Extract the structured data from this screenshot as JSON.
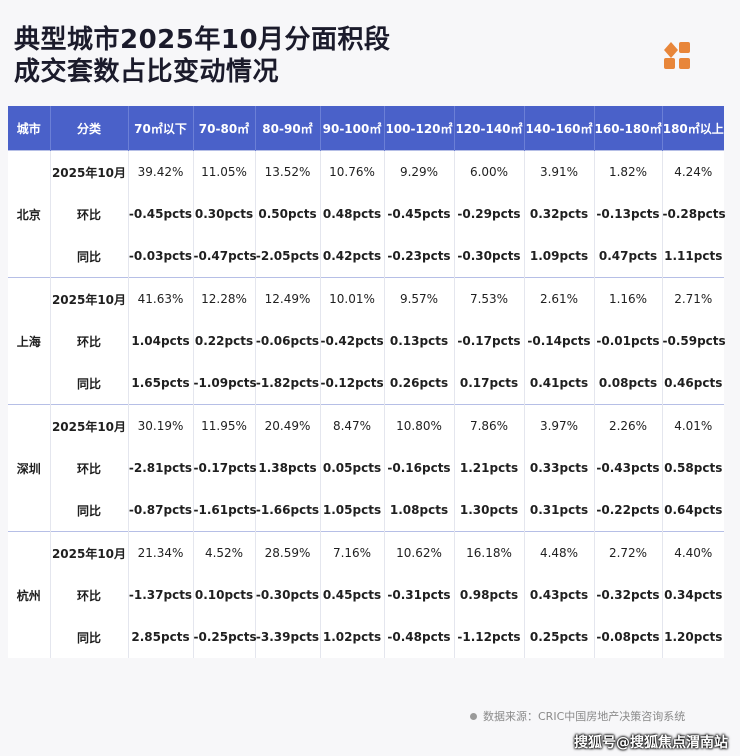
{
  "title_lines": [
    "典型城市2025年10月分面积段",
    "成交套数占比变动情况"
  ],
  "logo": {
    "icon": "grid-squares-icon",
    "color": "#e8863a"
  },
  "headers": [
    "城市",
    "分类",
    "70㎡以下",
    "70-80㎡",
    "80-90㎡",
    "90-100㎡",
    "100-120㎡",
    "120-140㎡",
    "140-160㎡",
    "160-180㎡",
    "180㎡以上"
  ],
  "colors": {
    "header_bg": "#4a61c9",
    "positive": "#d7192b",
    "negative": "#1a9b48"
  },
  "cities": [
    {
      "name": "北京",
      "rows": [
        {
          "type": "2025年10月",
          "values": [
            "39.42%",
            "11.05%",
            "13.52%",
            "10.76%",
            "9.29%",
            "6.00%",
            "3.91%",
            "1.82%",
            "4.24%"
          ]
        },
        {
          "type": "环比",
          "values": [
            "-0.45pcts",
            "0.30pcts",
            "0.50pcts",
            "0.48pcts",
            "-0.45pcts",
            "-0.29pcts",
            "0.32pcts",
            "-0.13pcts",
            "-0.28pcts"
          ]
        },
        {
          "type": "同比",
          "values": [
            "-0.03pcts",
            "-0.47pcts",
            "-2.05pcts",
            "0.42pcts",
            "-0.23pcts",
            "-0.30pcts",
            "1.09pcts",
            "0.47pcts",
            "1.11pcts"
          ]
        }
      ]
    },
    {
      "name": "上海",
      "rows": [
        {
          "type": "2025年10月",
          "values": [
            "41.63%",
            "12.28%",
            "12.49%",
            "10.01%",
            "9.57%",
            "7.53%",
            "2.61%",
            "1.16%",
            "2.71%"
          ]
        },
        {
          "type": "环比",
          "values": [
            "1.04pcts",
            "0.22pcts",
            "-0.06pcts",
            "-0.42pcts",
            "0.13pcts",
            "-0.17pcts",
            "-0.14pcts",
            "-0.01pcts",
            "-0.59pcts"
          ]
        },
        {
          "type": "同比",
          "values": [
            "1.65pcts",
            "-1.09pcts",
            "-1.82pcts",
            "-0.12pcts",
            "0.26pcts",
            "0.17pcts",
            "0.41pcts",
            "0.08pcts",
            "0.46pcts"
          ]
        }
      ]
    },
    {
      "name": "深圳",
      "rows": [
        {
          "type": "2025年10月",
          "values": [
            "30.19%",
            "11.95%",
            "20.49%",
            "8.47%",
            "10.80%",
            "7.86%",
            "3.97%",
            "2.26%",
            "4.01%"
          ]
        },
        {
          "type": "环比",
          "values": [
            "-2.81pcts",
            "-0.17pcts",
            "1.38pcts",
            "0.05pcts",
            "-0.16pcts",
            "1.21pcts",
            "0.33pcts",
            "-0.43pcts",
            "0.58pcts"
          ]
        },
        {
          "type": "同比",
          "values": [
            "-0.87pcts",
            "-1.61pcts",
            "-1.66pcts",
            "1.05pcts",
            "1.08pcts",
            "1.30pcts",
            "0.31pcts",
            "-0.22pcts",
            "0.64pcts"
          ]
        }
      ]
    },
    {
      "name": "杭州",
      "rows": [
        {
          "type": "2025年10月",
          "values": [
            "21.34%",
            "4.52%",
            "28.59%",
            "7.16%",
            "10.62%",
            "16.18%",
            "4.48%",
            "2.72%",
            "4.40%"
          ]
        },
        {
          "type": "环比",
          "values": [
            "-1.37pcts",
            "0.10pcts",
            "-0.30pcts",
            "0.45pcts",
            "-0.31pcts",
            "0.98pcts",
            "0.43pcts",
            "-0.32pcts",
            "0.34pcts"
          ]
        },
        {
          "type": "同比",
          "values": [
            "2.85pcts",
            "-0.25pcts",
            "-3.39pcts",
            "1.02pcts",
            "-0.48pcts",
            "-1.12pcts",
            "0.25pcts",
            "-0.08pcts",
            "1.20pcts"
          ]
        }
      ]
    }
  ],
  "source": "数据来源：CRIC中国房地产决策咨询系统",
  "watermark": "搜狐号@搜狐焦点渭南站"
}
